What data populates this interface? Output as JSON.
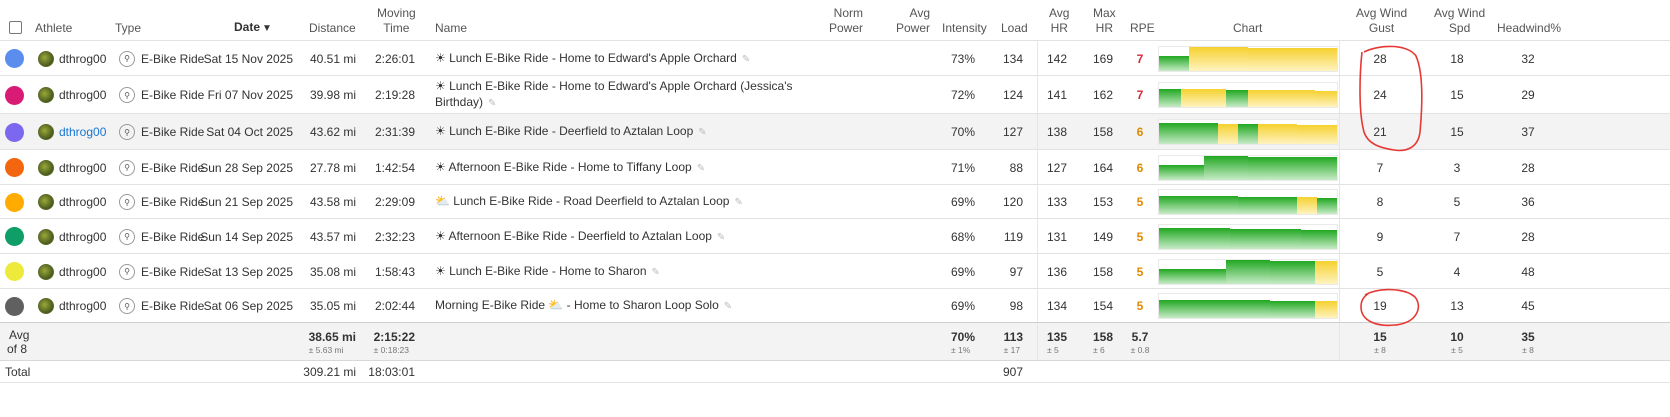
{
  "columns": {
    "athlete": "Athlete",
    "type": "Type",
    "date": "Date",
    "date_sort": "▼",
    "distance": "Distance",
    "moving_time": [
      "Moving",
      "Time"
    ],
    "name": "Name",
    "norm_power": [
      "Norm",
      "Power"
    ],
    "avg_power": [
      "Avg",
      "Power"
    ],
    "intensity": "Intensity",
    "load": "Load",
    "avg_hr": [
      "Avg",
      "HR"
    ],
    "max_hr": [
      "Max",
      "HR"
    ],
    "rpe": "RPE",
    "chart": "Chart",
    "avg_wind_gust": [
      "Avg Wind",
      "Gust"
    ],
    "avg_wind_spd": [
      "Avg Wind",
      "Spd"
    ],
    "headwind": "Headwind%"
  },
  "rows": [
    {
      "color": "#5b8def",
      "athlete": "dthrog00",
      "athlete_link": false,
      "type": "E-Bike Ride",
      "date": "Sat 15 Nov 2025",
      "distance": "40.51 mi",
      "time": "2:26:01",
      "icon": "☀",
      "name1": "Lunch E-Bike Ride - Home to Edward's Apple Orchard",
      "name2": "",
      "intensity": "73%",
      "load": "134",
      "avg_hr": "142",
      "max_hr": "169",
      "rpe": "7",
      "gust": "28",
      "spd": "18",
      "headwind": "32",
      "chart": "gyyyyy"
    },
    {
      "color": "#d81b74",
      "athlete": "dthrog00",
      "athlete_link": false,
      "type": "E-Bike Ride",
      "date": "Fri 07 Nov 2025",
      "distance": "39.98 mi",
      "time": "2:19:28",
      "icon": "☀",
      "name1": "Lunch E-Bike Ride - Home to Edward's Apple Orchard (Jessica's",
      "name2": "Birthday)",
      "intensity": "72%",
      "load": "124",
      "avg_hr": "141",
      "max_hr": "162",
      "rpe": "7",
      "gust": "24",
      "spd": "15",
      "headwind": "29",
      "chart": "gyygyyyy"
    },
    {
      "color": "#7b68ee",
      "athlete": "dthrog00",
      "athlete_link": true,
      "type": "E-Bike Ride",
      "date": "Sat 04 Oct 2025",
      "distance": "43.62 mi",
      "time": "2:31:39",
      "icon": "☀",
      "name1": "Lunch E-Bike Ride - Deerfield to Aztalan Loop",
      "name2": "",
      "intensity": "70%",
      "load": "127",
      "avg_hr": "138",
      "max_hr": "158",
      "rpe": "6",
      "gust": "21",
      "spd": "15",
      "headwind": "37",
      "chart": "gggygyyyy"
    },
    {
      "color": "#f4650f",
      "athlete": "dthrog00",
      "athlete_link": false,
      "type": "E-Bike Ride",
      "date": "Sun 28 Sep 2025",
      "distance": "27.78 mi",
      "time": "1:42:54",
      "icon": "☀",
      "name1": "Afternoon E-Bike Ride - Home to Tiffany Loop",
      "name2": "",
      "intensity": "71%",
      "load": "88",
      "avg_hr": "127",
      "max_hr": "164",
      "rpe": "6",
      "gust": "7",
      "spd": "3",
      "headwind": "28",
      "chart": "gggggggg"
    },
    {
      "color": "#ffab00",
      "athlete": "dthrog00",
      "athlete_link": false,
      "type": "E-Bike Ride",
      "date": "Sun 21 Sep 2025",
      "distance": "43.58 mi",
      "time": "2:29:09",
      "icon": "⛅",
      "name1": "Lunch E-Bike Ride - Road Deerfield to Aztalan Loop",
      "name2": "",
      "intensity": "69%",
      "load": "120",
      "avg_hr": "133",
      "max_hr": "153",
      "rpe": "5",
      "gust": "8",
      "spd": "5",
      "headwind": "36",
      "chart": "gggggggyg"
    },
    {
      "color": "#0f9d68",
      "athlete": "dthrog00",
      "athlete_link": false,
      "type": "E-Bike Ride",
      "date": "Sun 14 Sep 2025",
      "distance": "43.57 mi",
      "time": "2:32:23",
      "icon": "☀",
      "name1": "Afternoon E-Bike Ride - Deerfield to Aztalan Loop",
      "name2": "",
      "intensity": "68%",
      "load": "119",
      "avg_hr": "131",
      "max_hr": "149",
      "rpe": "5",
      "gust": "9",
      "spd": "7",
      "headwind": "28",
      "chart": "gggggggggg"
    },
    {
      "color": "#eeea3c",
      "athlete": "dthrog00",
      "athlete_link": false,
      "type": "E-Bike Ride",
      "date": "Sat 13 Sep 2025",
      "distance": "35.08 mi",
      "time": "1:58:43",
      "icon": "☀",
      "name1": "Lunch E-Bike Ride - Home to Sharon",
      "name2": "",
      "intensity": "69%",
      "load": "97",
      "avg_hr": "136",
      "max_hr": "158",
      "rpe": "5",
      "gust": "5",
      "spd": "4",
      "headwind": "48",
      "chart": "gggggggy"
    },
    {
      "color": "#606060",
      "athlete": "dthrog00",
      "athlete_link": false,
      "type": "E-Bike Ride",
      "date": "Sat 06 Sep 2025",
      "distance": "35.05 mi",
      "time": "2:02:44",
      "icon": "⛅",
      "name1": "Morning E-Bike Ride",
      "name1b": "- Home to Sharon Loop Solo",
      "name2": "",
      "intensity": "69%",
      "load": "98",
      "avg_hr": "134",
      "max_hr": "154",
      "rpe": "5",
      "gust": "19",
      "spd": "13",
      "headwind": "45",
      "chart": "gggggggy"
    }
  ],
  "avg": {
    "label1": "Avg",
    "label2": "of 8",
    "distance": "38.65 mi",
    "distance_sd": "± 5.63 mi",
    "time": "2:15:22",
    "time_sd": "± 0:18:23",
    "intensity": "70%",
    "intensity_sd": "± 1%",
    "load": "113",
    "load_sd": "± 17",
    "avg_hr": "135",
    "avg_hr_sd": "± 5",
    "max_hr": "158",
    "max_hr_sd": "± 6",
    "rpe": "5.7",
    "rpe_sd": "± 0.8",
    "gust": "15",
    "gust_sd": "± 8",
    "spd": "10",
    "spd_sd": "± 5",
    "headwind": "35",
    "headwind_sd": "± 8"
  },
  "total": {
    "label": "Total",
    "distance": "309.21 mi",
    "time": "18:03:01",
    "load": "907"
  },
  "colors": {
    "accent_link": "#1976d2",
    "annotation": "#e53935",
    "green": "#21a821",
    "yellow": "#f5d12e"
  }
}
